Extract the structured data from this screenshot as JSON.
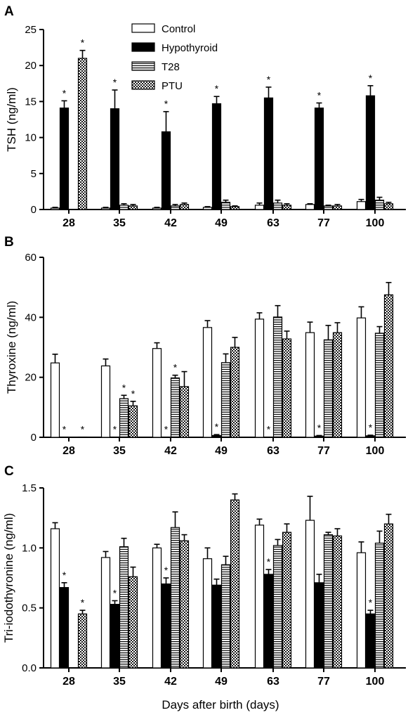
{
  "figure": {
    "x_title": "Days after birth (days)",
    "legend": [
      {
        "name": "Control",
        "pattern": "white"
      },
      {
        "name": "Hypothyroid",
        "pattern": "black"
      },
      {
        "name": "T28",
        "pattern": "hstripe"
      },
      {
        "name": "PTU",
        "pattern": "checker"
      }
    ]
  },
  "chart_data": [
    {
      "panel": "A",
      "type": "bar",
      "ylabel": "TSH (ng/ml)",
      "ylim": [
        0,
        25
      ],
      "yticks": [
        0,
        5,
        10,
        15,
        20,
        25
      ],
      "categories": [
        "28",
        "35",
        "42",
        "49",
        "63",
        "77",
        "100"
      ],
      "series": [
        {
          "name": "Control",
          "values": [
            0.2,
            0.2,
            0.2,
            0.3,
            0.6,
            0.7,
            1.1
          ],
          "errors": [
            0.1,
            0.1,
            0.1,
            0.1,
            0.3,
            0.1,
            0.3
          ],
          "stars": [
            false,
            false,
            false,
            false,
            false,
            false,
            false
          ]
        },
        {
          "name": "Hypothyroid",
          "values": [
            14.1,
            14.0,
            10.8,
            14.7,
            15.5,
            14.1,
            15.8
          ],
          "errors": [
            1.0,
            2.6,
            2.8,
            1.0,
            1.5,
            0.7,
            1.4
          ],
          "stars": [
            true,
            true,
            true,
            true,
            true,
            true,
            true
          ]
        },
        {
          "name": "T28",
          "values": [
            null,
            0.6,
            0.5,
            1.0,
            0.9,
            0.5,
            1.3
          ],
          "errors": [
            null,
            0.2,
            0.2,
            0.3,
            0.4,
            0.1,
            0.4
          ],
          "stars": [
            false,
            false,
            false,
            false,
            false,
            false,
            false
          ]
        },
        {
          "name": "PTU",
          "values": [
            21.0,
            0.5,
            0.7,
            0.4,
            0.6,
            0.5,
            0.8
          ],
          "errors": [
            1.1,
            0.2,
            0.2,
            0.1,
            0.2,
            0.2,
            0.2
          ],
          "stars": [
            true,
            false,
            false,
            false,
            false,
            false,
            false
          ]
        }
      ]
    },
    {
      "panel": "B",
      "type": "bar",
      "ylabel": "Thyroxine (ng/ml)",
      "ylim": [
        0,
        60
      ],
      "yticks": [
        0,
        20,
        40,
        60
      ],
      "categories": [
        "28",
        "35",
        "42",
        "49",
        "63",
        "77",
        "100"
      ],
      "series": [
        {
          "name": "Control",
          "values": [
            24.8,
            23.8,
            29.6,
            36.6,
            39.4,
            34.9,
            39.8
          ],
          "errors": [
            2.9,
            2.3,
            1.9,
            2.3,
            2.1,
            3.5,
            3.7
          ],
          "stars": [
            false,
            false,
            false,
            false,
            false,
            false,
            false
          ]
        },
        {
          "name": "Hypothyroid",
          "values": [
            0.1,
            0.1,
            0.1,
            0.6,
            0.1,
            0.4,
            0.5
          ],
          "errors": [
            0,
            0,
            0,
            0.3,
            0,
            0.2,
            0.2
          ],
          "stars": [
            true,
            true,
            true,
            true,
            true,
            true,
            true
          ]
        },
        {
          "name": "T28",
          "values": [
            null,
            12.9,
            19.8,
            24.9,
            40.1,
            32.5,
            34.7
          ],
          "errors": [
            null,
            1.1,
            0.9,
            2.9,
            3.8,
            4.8,
            2.2
          ],
          "stars": [
            false,
            true,
            true,
            false,
            false,
            false,
            false
          ]
        },
        {
          "name": "PTU",
          "values": [
            0.1,
            10.5,
            16.9,
            30.0,
            32.8,
            34.9,
            47.5
          ],
          "errors": [
            0,
            1.5,
            5.0,
            3.3,
            2.6,
            3.3,
            4.1
          ],
          "stars": [
            true,
            true,
            false,
            false,
            false,
            false,
            false
          ]
        }
      ]
    },
    {
      "panel": "C",
      "type": "bar",
      "ylabel": "Tri-iodothyronine (ng/ml)",
      "ylim": [
        0,
        1.5
      ],
      "yticks": [
        "0.0",
        "0.5",
        "1.0",
        "1.5"
      ],
      "categories": [
        "28",
        "35",
        "42",
        "49",
        "63",
        "77",
        "100"
      ],
      "series": [
        {
          "name": "Control",
          "values": [
            1.16,
            0.92,
            1.0,
            0.91,
            1.19,
            1.23,
            0.96
          ],
          "errors": [
            0.05,
            0.05,
            0.03,
            0.09,
            0.05,
            0.2,
            0.09
          ],
          "stars": [
            false,
            false,
            false,
            false,
            false,
            false,
            false
          ]
        },
        {
          "name": "Hypothyroid",
          "values": [
            0.67,
            0.53,
            0.7,
            0.69,
            0.78,
            0.71,
            0.45
          ],
          "errors": [
            0.04,
            0.03,
            0.05,
            0.05,
            0.04,
            0.07,
            0.03
          ],
          "stars": [
            true,
            true,
            true,
            false,
            true,
            false,
            true
          ]
        },
        {
          "name": "T28",
          "values": [
            null,
            1.01,
            1.17,
            0.86,
            1.02,
            1.11,
            1.04
          ],
          "errors": [
            null,
            0.07,
            0.13,
            0.07,
            0.05,
            0.02,
            0.1
          ],
          "stars": [
            false,
            false,
            false,
            false,
            false,
            false,
            false
          ]
        },
        {
          "name": "PTU",
          "values": [
            0.45,
            0.76,
            1.06,
            1.4,
            1.13,
            1.1,
            1.2
          ],
          "errors": [
            0.03,
            0.08,
            0.05,
            0.05,
            0.07,
            0.06,
            0.08
          ],
          "stars": [
            true,
            false,
            false,
            false,
            false,
            false,
            false
          ]
        }
      ]
    }
  ]
}
